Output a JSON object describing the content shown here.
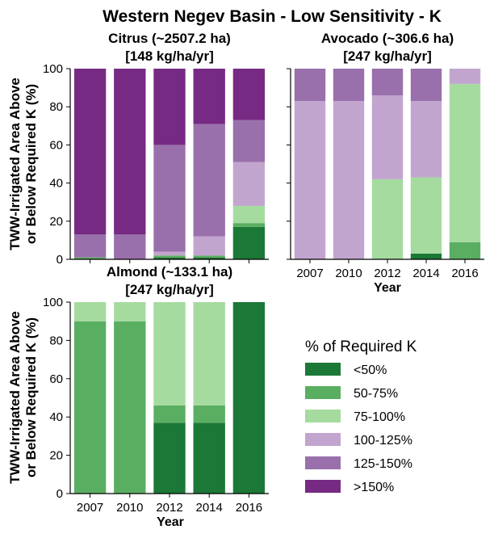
{
  "figure": {
    "title": "Western Negev Basin - Low Sensitivity - K",
    "ylabel_lines": [
      "TWW-Irrigated Area Above",
      "or Below Required K (%)"
    ],
    "xlabel": "Year"
  },
  "legend": {
    "title": "% of Required K",
    "items": [
      {
        "label": "<50%",
        "color": "#1b7837"
      },
      {
        "label": "50-75%",
        "color": "#5aae61"
      },
      {
        "label": "75-100%",
        "color": "#a6dba0"
      },
      {
        "label": "100-125%",
        "color": "#c2a5cf"
      },
      {
        "label": "125-150%",
        "color": "#9970ab"
      },
      {
        "label": ">150%",
        "color": "#762a83"
      }
    ]
  },
  "chart_data": [
    {
      "type": "bar",
      "stacked": true,
      "title_lines": [
        "Citrus (~2507.2 ha)",
        "[148 kg/ha/yr]"
      ],
      "categories": [
        "2007",
        "2010",
        "2012",
        "2014",
        "2016"
      ],
      "ylim": [
        0,
        100
      ],
      "yticks": [
        0,
        20,
        40,
        60,
        80,
        100
      ],
      "series": [
        {
          "name": "<50%",
          "values": [
            0,
            0,
            1,
            1,
            17
          ]
        },
        {
          "name": "50-75%",
          "values": [
            1,
            0,
            1,
            1,
            2
          ]
        },
        {
          "name": "75-100%",
          "values": [
            0,
            0,
            0,
            0,
            9
          ]
        },
        {
          "name": "100-125%",
          "values": [
            0,
            0,
            2,
            10,
            23
          ]
        },
        {
          "name": "125-150%",
          "values": [
            12,
            13,
            56,
            59,
            22
          ]
        },
        {
          "name": ">150%",
          "values": [
            87,
            87,
            40,
            29,
            27
          ]
        }
      ]
    },
    {
      "type": "bar",
      "stacked": true,
      "title_lines": [
        "Avocado (~306.6 ha)",
        "[247 kg/ha/yr]"
      ],
      "categories": [
        "2007",
        "2010",
        "2012",
        "2014",
        "2016"
      ],
      "ylim": [
        0,
        100
      ],
      "yticks": [
        0,
        20,
        40,
        60,
        80,
        100
      ],
      "series": [
        {
          "name": "<50%",
          "values": [
            0,
            0,
            0,
            3,
            0
          ]
        },
        {
          "name": "50-75%",
          "values": [
            0,
            0,
            0,
            0,
            9
          ]
        },
        {
          "name": "75-100%",
          "values": [
            0,
            0,
            42,
            40,
            83
          ]
        },
        {
          "name": "100-125%",
          "values": [
            83,
            83,
            44,
            40,
            8
          ]
        },
        {
          "name": "125-150%",
          "values": [
            17,
            17,
            14,
            17,
            0
          ]
        },
        {
          "name": ">150%",
          "values": [
            0,
            0,
            0,
            0,
            0
          ]
        }
      ]
    },
    {
      "type": "bar",
      "stacked": true,
      "title_lines": [
        "Almond (~133.1 ha)",
        "[247 kg/ha/yr]"
      ],
      "categories": [
        "2007",
        "2010",
        "2012",
        "2014",
        "2016"
      ],
      "ylim": [
        0,
        100
      ],
      "yticks": [
        0,
        20,
        40,
        60,
        80,
        100
      ],
      "series": [
        {
          "name": "<50%",
          "values": [
            0,
            0,
            37,
            37,
            100
          ]
        },
        {
          "name": "50-75%",
          "values": [
            90,
            90,
            9,
            9,
            0
          ]
        },
        {
          "name": "75-100%",
          "values": [
            10,
            10,
            54,
            54,
            0
          ]
        },
        {
          "name": "100-125%",
          "values": [
            0,
            0,
            0,
            0,
            0
          ]
        },
        {
          "name": "125-150%",
          "values": [
            0,
            0,
            0,
            0,
            0
          ]
        },
        {
          "name": ">150%",
          "values": [
            0,
            0,
            0,
            0,
            0
          ]
        }
      ]
    }
  ]
}
